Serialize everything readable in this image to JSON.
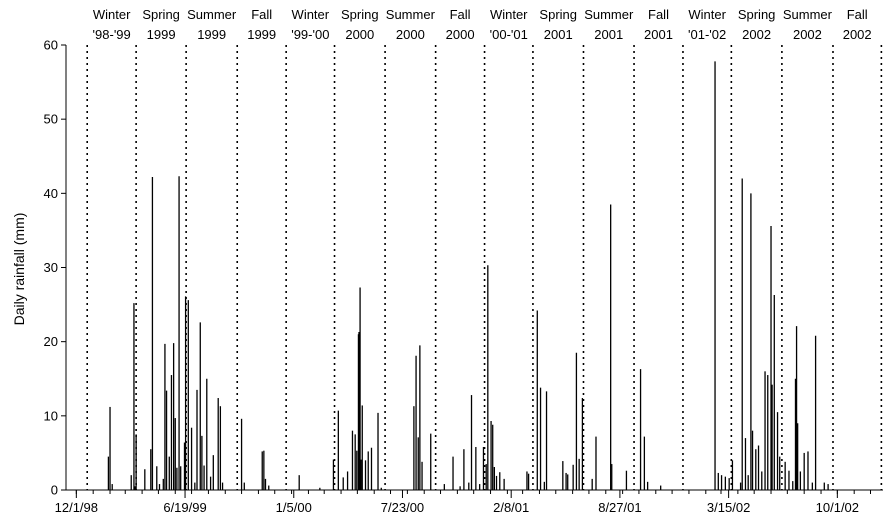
{
  "chart_data": {
    "type": "bar",
    "title": "",
    "ylabel": "Daily rainfall (mm)",
    "xlabel": "",
    "ylim": [
      0,
      60
    ],
    "yticks": [
      0,
      10,
      20,
      30,
      40,
      50,
      60
    ],
    "xrange": [
      "1998-11-12",
      "2002-12-24"
    ],
    "xticks": [
      {
        "date": "1998-12-01",
        "label": "12/1/98"
      },
      {
        "date": "1999-06-19",
        "label": "6/19/99"
      },
      {
        "date": "2000-01-05",
        "label": "1/5/00"
      },
      {
        "date": "2000-07-23",
        "label": "7/23/00"
      },
      {
        "date": "2001-02-08",
        "label": "2/8/01"
      },
      {
        "date": "2001-08-27",
        "label": "8/27/01"
      },
      {
        "date": "2002-03-15",
        "label": "3/15/02"
      },
      {
        "date": "2002-10-01",
        "label": "10/1/02"
      }
    ],
    "season_boundaries": [
      "1998-12-21",
      "1999-03-21",
      "1999-06-21",
      "1999-09-23",
      "1999-12-22",
      "2000-03-20",
      "2000-06-21",
      "2000-09-22",
      "2000-12-21",
      "2001-03-20",
      "2001-06-21",
      "2001-09-22",
      "2001-12-21",
      "2002-03-20",
      "2002-06-21",
      "2002-09-23",
      "2002-12-21"
    ],
    "season_labels": [
      {
        "line1": "Winter",
        "line2": "'98-'99"
      },
      {
        "line1": "Spring",
        "line2": "1999"
      },
      {
        "line1": "Summer",
        "line2": "1999"
      },
      {
        "line1": "Fall",
        "line2": "1999"
      },
      {
        "line1": "Winter",
        "line2": "'99-'00"
      },
      {
        "line1": "Spring",
        "line2": "2000"
      },
      {
        "line1": "Summer",
        "line2": "2000"
      },
      {
        "line1": "Fall",
        "line2": "2000"
      },
      {
        "line1": "Winter",
        "line2": "'00-'01"
      },
      {
        "line1": "Spring",
        "line2": "2001"
      },
      {
        "line1": "Summer",
        "line2": "2001"
      },
      {
        "line1": "Fall",
        "line2": "2001"
      },
      {
        "line1": "Winter",
        "line2": "'01-'02"
      },
      {
        "line1": "Spring",
        "line2": "2002"
      },
      {
        "line1": "Summer",
        "line2": "2002"
      },
      {
        "line1": "Fall",
        "line2": "2002"
      }
    ],
    "series": [
      {
        "points": [
          [
            "1999-01-29",
            4.5
          ],
          [
            "1999-02-01",
            11.2
          ],
          [
            "1999-02-05",
            0.8
          ],
          [
            "1999-03-12",
            2.0
          ],
          [
            "1999-03-17",
            25.2
          ],
          [
            "1999-03-19",
            0.5
          ],
          [
            "1999-03-21",
            7.5
          ],
          [
            "1999-04-06",
            2.8
          ],
          [
            "1999-04-17",
            5.5
          ],
          [
            "1999-04-20",
            42.2
          ],
          [
            "1999-04-28",
            3.2
          ],
          [
            "1999-05-03",
            0.8
          ],
          [
            "1999-05-10",
            1.5
          ],
          [
            "1999-05-13",
            19.7
          ],
          [
            "1999-05-16",
            13.4
          ],
          [
            "1999-05-21",
            4.5
          ],
          [
            "1999-05-25",
            15.5
          ],
          [
            "1999-05-29",
            19.8
          ],
          [
            "1999-06-01",
            9.7
          ],
          [
            "1999-06-04",
            3.0
          ],
          [
            "1999-06-08",
            42.3
          ],
          [
            "1999-06-11",
            3.2
          ],
          [
            "1999-06-18",
            6.4
          ],
          [
            "1999-06-20",
            26.1
          ],
          [
            "1999-06-25",
            25.6
          ],
          [
            "1999-07-01",
            8.4
          ],
          [
            "1999-07-07",
            1.0
          ],
          [
            "1999-07-11",
            13.5
          ],
          [
            "1999-07-17",
            22.6
          ],
          [
            "1999-07-20",
            7.3
          ],
          [
            "1999-07-24",
            3.3
          ],
          [
            "1999-07-29",
            15.0
          ],
          [
            "1999-08-05",
            1.8
          ],
          [
            "1999-08-10",
            4.7
          ],
          [
            "1999-08-19",
            12.4
          ],
          [
            "1999-08-23",
            11.3
          ],
          [
            "1999-08-27",
            1.0
          ],
          [
            "1999-10-01",
            9.6
          ],
          [
            "1999-10-06",
            1.0
          ],
          [
            "1999-11-08",
            5.2
          ],
          [
            "1999-11-11",
            5.3
          ],
          [
            "1999-11-14",
            1.5
          ],
          [
            "1999-11-20",
            0.6
          ],
          [
            "2000-01-15",
            2.0
          ],
          [
            "2000-02-22",
            0.3
          ],
          [
            "2000-03-18",
            4.1
          ],
          [
            "2000-03-27",
            10.7
          ],
          [
            "2000-04-05",
            1.7
          ],
          [
            "2000-04-13",
            2.5
          ],
          [
            "2000-04-22",
            8.0
          ],
          [
            "2000-04-27",
            7.5
          ],
          [
            "2000-04-30",
            5.3
          ],
          [
            "2000-05-03",
            21.0
          ],
          [
            "2000-05-04",
            21.3
          ],
          [
            "2000-05-06",
            27.3
          ],
          [
            "2000-05-08",
            4.1
          ],
          [
            "2000-05-10",
            11.4
          ],
          [
            "2000-05-16",
            4.0
          ],
          [
            "2000-05-21",
            5.2
          ],
          [
            "2000-05-27",
            5.7
          ],
          [
            "2000-06-08",
            10.4
          ],
          [
            "2000-06-14",
            0.3
          ],
          [
            "2000-08-13",
            11.3
          ],
          [
            "2000-08-17",
            18.1
          ],
          [
            "2000-08-21",
            7.1
          ],
          [
            "2000-08-24",
            19.5
          ],
          [
            "2000-08-28",
            3.8
          ],
          [
            "2000-09-13",
            7.6
          ],
          [
            "2000-10-08",
            0.8
          ],
          [
            "2000-10-24",
            4.5
          ],
          [
            "2000-11-06",
            0.5
          ],
          [
            "2000-11-13",
            5.5
          ],
          [
            "2000-11-22",
            1.0
          ],
          [
            "2000-11-27",
            12.8
          ],
          [
            "2000-12-05",
            5.8
          ],
          [
            "2000-12-12",
            0.8
          ],
          [
            "2000-12-19",
            5.8
          ],
          [
            "2000-12-24",
            3.5
          ],
          [
            "2000-12-27",
            30.3
          ],
          [
            "2001-01-02",
            9.3
          ],
          [
            "2001-01-05",
            8.8
          ],
          [
            "2001-01-08",
            3.1
          ],
          [
            "2001-01-12",
            1.9
          ],
          [
            "2001-01-18",
            2.4
          ],
          [
            "2001-01-26",
            1.5
          ],
          [
            "2001-03-09",
            2.5
          ],
          [
            "2001-03-12",
            2.2
          ],
          [
            "2001-03-28",
            24.2
          ],
          [
            "2001-04-03",
            13.8
          ],
          [
            "2001-04-10",
            1.1
          ],
          [
            "2001-04-14",
            13.3
          ],
          [
            "2001-05-14",
            3.9
          ],
          [
            "2001-05-20",
            2.3
          ],
          [
            "2001-05-23",
            2.1
          ],
          [
            "2001-06-02",
            3.4
          ],
          [
            "2001-06-08",
            18.5
          ],
          [
            "2001-06-13",
            4.2
          ],
          [
            "2001-06-19",
            12.4
          ],
          [
            "2001-07-07",
            1.5
          ],
          [
            "2001-07-14",
            7.2
          ],
          [
            "2001-08-10",
            38.5
          ],
          [
            "2001-08-12",
            3.5
          ],
          [
            "2001-09-08",
            2.6
          ],
          [
            "2001-10-04",
            16.3
          ],
          [
            "2001-10-11",
            7.2
          ],
          [
            "2001-10-17",
            1.1
          ],
          [
            "2001-11-10",
            0.6
          ],
          [
            "2002-02-18",
            57.8
          ],
          [
            "2002-02-24",
            2.3
          ],
          [
            "2002-03-02",
            2.0
          ],
          [
            "2002-03-09",
            1.8
          ],
          [
            "2002-03-16",
            1.6
          ],
          [
            "2002-03-22",
            4.0
          ],
          [
            "2002-04-06",
            1.0
          ],
          [
            "2002-04-09",
            42.0
          ],
          [
            "2002-04-15",
            7.0
          ],
          [
            "2002-04-20",
            2.0
          ],
          [
            "2002-04-25",
            40.0
          ],
          [
            "2002-04-28",
            8.0
          ],
          [
            "2002-05-04",
            5.5
          ],
          [
            "2002-05-09",
            6.0
          ],
          [
            "2002-05-15",
            2.5
          ],
          [
            "2002-05-21",
            16.0
          ],
          [
            "2002-05-26",
            15.5
          ],
          [
            "2002-06-01",
            35.6
          ],
          [
            "2002-06-03",
            14.2
          ],
          [
            "2002-06-07",
            26.3
          ],
          [
            "2002-06-13",
            10.5
          ],
          [
            "2002-06-17",
            4.5
          ],
          [
            "2002-06-27",
            3.8
          ],
          [
            "2002-07-04",
            2.6
          ],
          [
            "2002-07-11",
            1.2
          ],
          [
            "2002-07-16",
            15.0
          ],
          [
            "2002-07-18",
            22.1
          ],
          [
            "2002-07-20",
            9.0
          ],
          [
            "2002-07-25",
            2.5
          ],
          [
            "2002-08-01",
            5.0
          ],
          [
            "2002-08-08",
            5.2
          ],
          [
            "2002-08-16",
            1.0
          ],
          [
            "2002-08-22",
            20.8
          ],
          [
            "2002-09-07",
            1.0
          ],
          [
            "2002-09-14",
            0.8
          ]
        ]
      }
    ]
  }
}
